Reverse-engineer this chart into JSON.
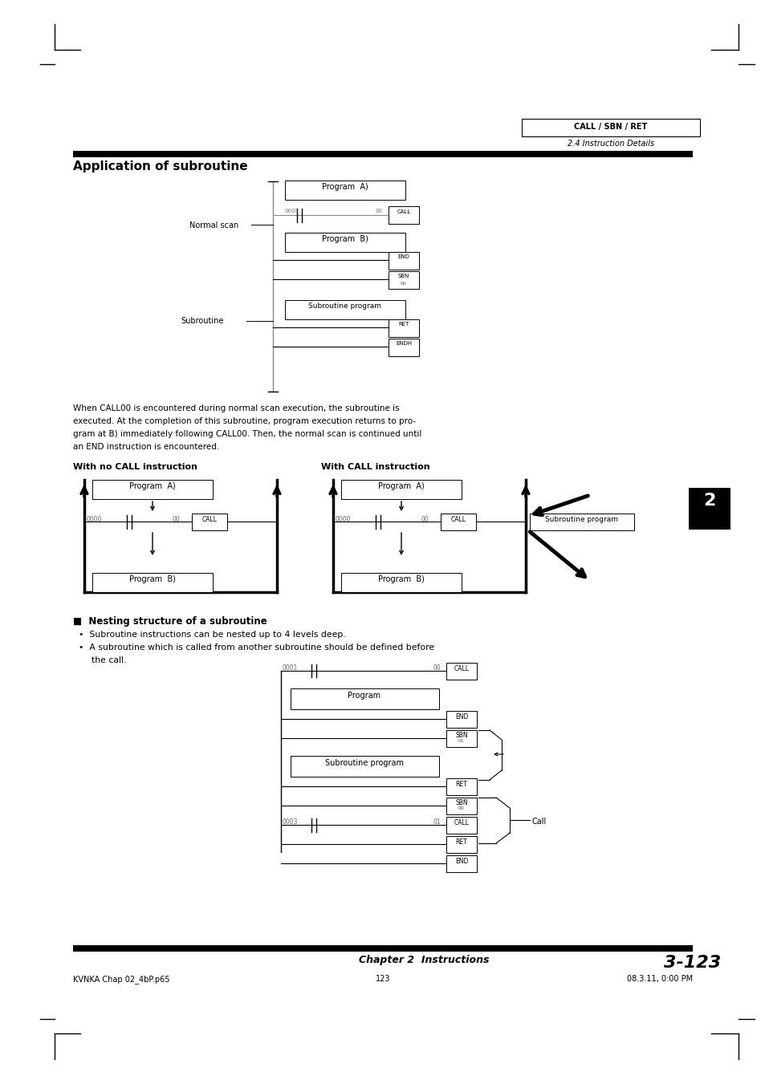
{
  "bg_color": "#ffffff",
  "page_title": "Application of subroutine",
  "header_label": "CALL / SBN / RET",
  "header_sub": "2.4 Instruction Details",
  "chapter_label": "Chapter 2  Instructions",
  "page_num": "3-123",
  "footer_left": "KVNKA Chap 02_4bP.p65",
  "footer_center": "123",
  "footer_right": "08.3.11, 0:00 PM",
  "body_text": "When CALL00 is encountered during normal scan execution, the subroutine is\nexecuted. At the completion of this subroutine, program execution returns to pro-\ngram at B) immediately following CALL00. Then, the normal scan is continued until\nan END instruction is encountered.",
  "section_nesting_title": "Nesting structure of a subroutine",
  "bullet1": "Subroutine instructions can be nested up to 4 levels deep.",
  "bullet2": "A subroutine which is called from another subroutine should be defined before",
  "bullet2b": "the call.",
  "no_call_title": "With no CALL instruction",
  "call_title": "With CALL instruction",
  "chapter_num": "2"
}
